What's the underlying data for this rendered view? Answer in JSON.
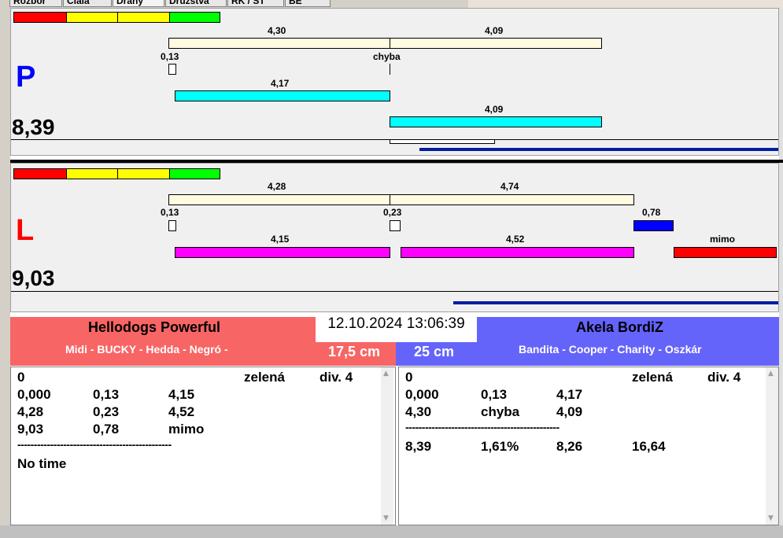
{
  "tabs": [
    "Rozbor",
    "Cíala",
    "Dráhy",
    "Družstvá",
    "RK / ST",
    "BE"
  ],
  "colors": {
    "red": "#ff0000",
    "yellow": "#ffff00",
    "green": "#00ff00",
    "cream": "#fffbe0",
    "cyan": "#00ffff",
    "magenta": "#ff00ff",
    "blue": "#0000ff",
    "team_left": "#f86565",
    "team_right": "#6464fb",
    "progress": "#001ea0"
  },
  "track_p": {
    "letter": "P",
    "score": "8,39",
    "top_labels": [
      "4,30",
      "4,09"
    ],
    "point_labels": [
      "0,13",
      "chyba"
    ],
    "mid_label": "4,17",
    "lower_label": "4,09"
  },
  "track_l": {
    "letter": "L",
    "score": "9,03",
    "top_labels": [
      "4,28",
      "4,74"
    ],
    "point_labels": [
      "0,13",
      "0,23",
      "0,78"
    ],
    "mid_labels": [
      "4,15",
      "4,52",
      "mimo"
    ]
  },
  "datetime": "12.10.2024 13:06:39",
  "team_left": {
    "name": "Hellodogs Powerful",
    "members": "Midi - BUCKY - Hedda - Negró -",
    "height": "17,5 cm"
  },
  "team_right": {
    "name": "Akela BordiZ",
    "members": "Bandita - Cooper - Charity - Oszkár",
    "height": "25 cm"
  },
  "list_left": {
    "rows": [
      [
        "0",
        "",
        "",
        "zelená",
        "div. 4"
      ],
      [
        "0,000",
        "0,13",
        "4,15",
        "",
        ""
      ],
      [
        "4,28",
        "0,23",
        "4,52",
        "",
        ""
      ],
      [
        "9,03",
        "0,78",
        "mimo",
        "",
        ""
      ]
    ],
    "divider": "-----------------------------------------------",
    "footer": "No time"
  },
  "list_right": {
    "rows": [
      [
        "0",
        "",
        "",
        "zelená",
        "div. 4"
      ],
      [
        "0,000",
        "0,13",
        "4,17",
        "",
        ""
      ],
      [
        "4,30",
        "chyba",
        "4,09",
        "",
        ""
      ]
    ],
    "divider": "-----------------------------------------------",
    "summary": [
      "8,39",
      "1,61%",
      "8,26",
      "16,64"
    ]
  }
}
